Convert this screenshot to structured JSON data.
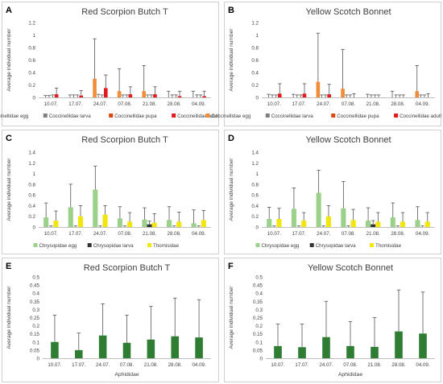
{
  "colors": {
    "coccinellidae_egg": "#F28C38",
    "coccinellidae_larva": "#7F7F7F",
    "coccinellidae_pupa": "#D9480F",
    "coccinellidae_adult": "#E31A1C",
    "chrysopidae_egg": "#9BD18B",
    "chrysopidae_larva": "#333333",
    "thomisidae": "#F2E60F",
    "aphididae": "#2E7D32",
    "error_bar": "#555555",
    "axis": "#BFBFBF",
    "panel_border": "#D0D0D0",
    "text": "#404040"
  },
  "chart_data": [
    {
      "letter": "A",
      "type": "bar",
      "title": "Red Scorpion Butch T",
      "ylabel": "Average individual number",
      "xlabel": "",
      "ylim": [
        0,
        1.2
      ],
      "yticks": [
        "0",
        "0.2",
        "0.4",
        "0.6",
        "0.8",
        "1",
        "1.2"
      ],
      "categories": [
        "10.07.",
        "17.07.",
        "24.07.",
        "07.08.",
        "21.08.",
        "28.08.",
        "04.09."
      ],
      "legend_position": "bottom",
      "series": [
        {
          "name": "Coccinellidae egg",
          "color_key": "coccinellidae_egg",
          "values": [
            0.0,
            0.0,
            0.3,
            0.1,
            0.1,
            0.0,
            0.0
          ],
          "errors": [
            0.03,
            0.04,
            0.64,
            0.36,
            0.41,
            0.1,
            0.1
          ]
        },
        {
          "name": "Coccinellidae larva",
          "color_key": "coccinellidae_larva",
          "values": [
            0.0,
            0.0,
            0.0,
            0.0,
            0.0,
            0.0,
            0.0
          ],
          "errors": [
            0.03,
            0.04,
            0.05,
            0.04,
            0.04,
            0.04,
            0.04
          ]
        },
        {
          "name": "Coccinellidae pupa",
          "color_key": "coccinellidae_pupa",
          "values": [
            0.0,
            0.0,
            0.0,
            0.0,
            0.0,
            0.0,
            0.0
          ],
          "errors": [
            0.04,
            0.04,
            0.04,
            0.04,
            0.04,
            0.04,
            0.04
          ]
        },
        {
          "name": "Coccinellidae adult",
          "color_key": "coccinellidae_adult",
          "values": [
            0.05,
            0.03,
            0.15,
            0.05,
            0.05,
            0.02,
            0.02
          ],
          "errors": [
            0.1,
            0.08,
            0.21,
            0.12,
            0.12,
            0.08,
            0.08
          ]
        }
      ]
    },
    {
      "letter": "B",
      "type": "bar",
      "title": "Yellow Scotch Bonnet",
      "ylabel": "Average individual number",
      "xlabel": "",
      "ylim": [
        0,
        1.2
      ],
      "yticks": [
        "0",
        "0.2",
        "0.4",
        "0.6",
        "0.8",
        "1",
        "1.2"
      ],
      "categories": [
        "10.07.",
        "17.07.",
        "24.07.",
        "07.08.",
        "21.08.",
        "28.08.",
        "04.09."
      ],
      "legend_position": "bottom",
      "series": [
        {
          "name": "Coccinellidae egg",
          "color_key": "coccinellidae_egg",
          "values": [
            0.0,
            0.0,
            0.25,
            0.14,
            0.0,
            0.0,
            0.1
          ],
          "errors": [
            0.05,
            0.05,
            0.78,
            0.63,
            0.05,
            0.1,
            0.41
          ]
        },
        {
          "name": "Coccinellidae larva",
          "color_key": "coccinellidae_larva",
          "values": [
            0.0,
            0.0,
            0.0,
            0.0,
            0.0,
            0.0,
            0.0
          ],
          "errors": [
            0.04,
            0.04,
            0.04,
            0.04,
            0.04,
            0.04,
            0.04
          ]
        },
        {
          "name": "Coccinellidae pupa",
          "color_key": "coccinellidae_pupa",
          "values": [
            0.0,
            0.0,
            0.0,
            0.0,
            0.0,
            0.0,
            0.0
          ],
          "errors": [
            0.04,
            0.04,
            0.04,
            0.04,
            0.04,
            0.04,
            0.04
          ]
        },
        {
          "name": "Coccinellidae adult",
          "color_key": "coccinellidae_adult",
          "values": [
            0.06,
            0.06,
            0.05,
            0.0,
            0.0,
            0.0,
            0.0
          ],
          "errors": [
            0.16,
            0.16,
            0.16,
            0.06,
            0.04,
            0.04,
            0.06
          ]
        }
      ]
    },
    {
      "letter": "C",
      "type": "bar",
      "title": "Red Scorpion Butch T",
      "ylabel": "Average individual number",
      "xlabel": "",
      "ylim": [
        0,
        1.4
      ],
      "yticks": [
        "0",
        "0.2",
        "0.4",
        "0.6",
        "0.8",
        "1",
        "1.2",
        "1.4"
      ],
      "categories": [
        "10.07.",
        "17.07.",
        "24.07.",
        "07.08.",
        "21.08.",
        "28.08.",
        "04.09."
      ],
      "legend_position": "bottom",
      "series": [
        {
          "name": "Chrysopidae egg",
          "color_key": "chrysopidae_egg",
          "values": [
            0.18,
            0.37,
            0.7,
            0.16,
            0.14,
            0.13,
            0.07
          ],
          "errors": [
            0.27,
            0.43,
            0.44,
            0.22,
            0.22,
            0.25,
            0.25
          ]
        },
        {
          "name": "Chrysopidae larva",
          "color_key": "chrysopidae_larva",
          "values": [
            0.0,
            0.0,
            0.0,
            0.0,
            0.05,
            0.0,
            0.0
          ],
          "errors": [
            0.02,
            0.02,
            0.02,
            0.02,
            0.06,
            0.02,
            0.02
          ]
        },
        {
          "name": "Thomisidae",
          "color_key": "thomisidae",
          "values": [
            0.12,
            0.2,
            0.23,
            0.1,
            0.08,
            0.1,
            0.13
          ],
          "errors": [
            0.18,
            0.2,
            0.17,
            0.17,
            0.17,
            0.18,
            0.18
          ]
        }
      ]
    },
    {
      "letter": "D",
      "type": "bar",
      "title": "Yellow Scotch Bonnet",
      "ylabel": "Average individual number",
      "xlabel": "",
      "ylim": [
        0,
        1.4
      ],
      "yticks": [
        "0",
        "0.2",
        "0.4",
        "0.6",
        "0.8",
        "1",
        "1.2",
        "1.4"
      ],
      "categories": [
        "10.07.",
        "17.07.",
        "24.07.",
        "07.08.",
        "21.08.",
        "28.08.",
        "04.09."
      ],
      "legend_position": "bottom",
      "series": [
        {
          "name": "Chrysopidae egg",
          "color_key": "chrysopidae_egg",
          "values": [
            0.15,
            0.34,
            0.64,
            0.35,
            0.12,
            0.18,
            0.13
          ],
          "errors": [
            0.22,
            0.39,
            0.42,
            0.5,
            0.24,
            0.27,
            0.25
          ]
        },
        {
          "name": "Chrysopidae larva",
          "color_key": "chrysopidae_larva",
          "values": [
            0.0,
            0.0,
            0.0,
            0.0,
            0.05,
            0.0,
            0.0
          ],
          "errors": [
            0.02,
            0.02,
            0.02,
            0.02,
            0.07,
            0.02,
            0.02
          ]
        },
        {
          "name": "Thomisidae",
          "color_key": "thomisidae",
          "values": [
            0.15,
            0.12,
            0.2,
            0.13,
            0.1,
            0.1,
            0.1
          ],
          "errors": [
            0.2,
            0.15,
            0.2,
            0.2,
            0.17,
            0.17,
            0.17
          ]
        }
      ]
    },
    {
      "letter": "E",
      "type": "bar",
      "title": "Red Scorpion Butch T",
      "ylabel": "Average individual number",
      "xlabel": "Aphididae",
      "ylim": [
        0,
        0.5
      ],
      "yticks": [
        "0",
        "0.05",
        "0.1",
        "0.15",
        "0.2",
        "0.25",
        "0.3",
        "0.35",
        "0.4",
        "0.45",
        "0.5"
      ],
      "categories": [
        "10.07.",
        "17.07.",
        "24.07.",
        "07.08.",
        "21.08.",
        "28.08.",
        "04.09."
      ],
      "legend_position": "none",
      "series": [
        {
          "name": "Aphididae",
          "color_key": "aphididae",
          "values": [
            0.1,
            0.05,
            0.14,
            0.095,
            0.115,
            0.135,
            0.128
          ],
          "errors": [
            0.165,
            0.105,
            0.195,
            0.17,
            0.205,
            0.235,
            0.232
          ]
        }
      ]
    },
    {
      "letter": "F",
      "type": "bar",
      "title": "Yellow Scotch Bonnet",
      "ylabel": "Average individual number",
      "xlabel": "Aphididae",
      "ylim": [
        0,
        0.5
      ],
      "yticks": [
        "0",
        "0.05",
        "0.1",
        "0.15",
        "0.2",
        "0.25",
        "0.3",
        "0.35",
        "0.4",
        "0.45",
        "0.5"
      ],
      "categories": [
        "10.07.",
        "17.07.",
        "24.07.",
        "07.08.",
        "21.08.",
        "28.08.",
        "04.09."
      ],
      "legend_position": "none",
      "series": [
        {
          "name": "Aphididae",
          "color_key": "aphididae",
          "values": [
            0.075,
            0.068,
            0.13,
            0.075,
            0.07,
            0.165,
            0.152
          ],
          "errors": [
            0.135,
            0.142,
            0.22,
            0.15,
            0.18,
            0.255,
            0.255
          ]
        }
      ]
    }
  ]
}
